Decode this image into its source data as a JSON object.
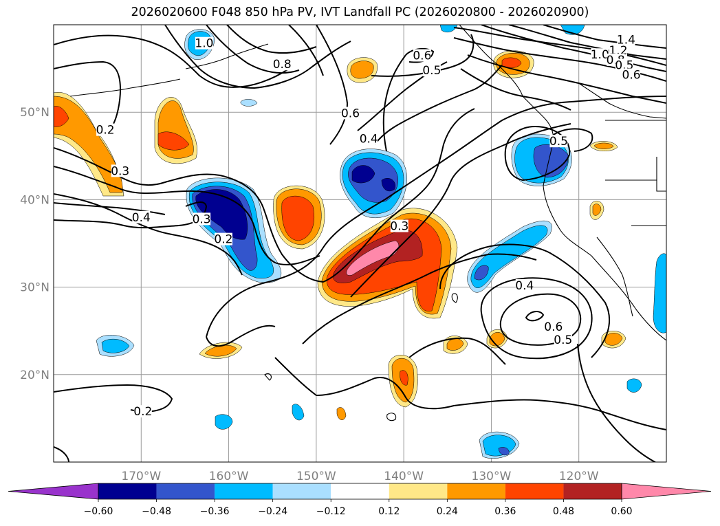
{
  "chart_data": {
    "type": "contour map",
    "title": "2026020600 F048 850 hPa PV, IVT Landfall PC (2026020800 - 2026020900)",
    "map_extent": {
      "lon_range": [
        -180,
        -110
      ],
      "lat_range": [
        10,
        60
      ]
    },
    "lon_ticks": [
      {
        "lon": -170,
        "label": "170°W"
      },
      {
        "lon": -160,
        "label": "160°W"
      },
      {
        "lon": -150,
        "label": "150°W"
      },
      {
        "lon": -140,
        "label": "140°W"
      },
      {
        "lon": -130,
        "label": "130°W"
      },
      {
        "lon": -120,
        "label": "120°W"
      }
    ],
    "lat_ticks": [
      {
        "lat": 20,
        "label": "20°N"
      },
      {
        "lat": 30,
        "label": "30°N"
      },
      {
        "lat": 40,
        "label": "40°N"
      },
      {
        "lat": 50,
        "label": "50°N"
      }
    ],
    "colorbar": {
      "levels": [
        -0.6,
        -0.48,
        -0.36,
        -0.24,
        -0.12,
        0.12,
        0.24,
        0.36,
        0.48,
        0.6
      ],
      "tick_labels": [
        "−0.60",
        "−0.48",
        "−0.36",
        "−0.24",
        "−0.12",
        "0.12",
        "0.24",
        "0.36",
        "0.48",
        "0.60"
      ],
      "colors": [
        "#9933cc",
        "#000090",
        "#3355cc",
        "#00bbff",
        "#aadfff",
        "#ffffff",
        "#ffe888",
        "#ff9900",
        "#ff4400",
        "#b22222",
        "#ff88aa"
      ],
      "extend": "both"
    },
    "pv_contour_labels": [
      {
        "text": "1.0",
        "lon": -162.8,
        "lat": 57.9
      },
      {
        "text": "0.8",
        "lon": -153.9,
        "lat": 55.5
      },
      {
        "text": "0.6",
        "lon": -137.9,
        "lat": 56.5
      },
      {
        "text": "0.5",
        "lon": -136.8,
        "lat": 54.8
      },
      {
        "text": "0.6",
        "lon": -146.1,
        "lat": 49.9
      },
      {
        "text": "0.4",
        "lon": -144.0,
        "lat": 47.0
      },
      {
        "text": "1.4",
        "lon": -114.6,
        "lat": 58.3
      },
      {
        "text": "1.2",
        "lon": -115.5,
        "lat": 57.1
      },
      {
        "text": "1.0",
        "lon": -117.6,
        "lat": 56.6
      },
      {
        "text": "0.8",
        "lon": -115.8,
        "lat": 56.0
      },
      {
        "text": "0.5",
        "lon": -114.8,
        "lat": 55.4
      },
      {
        "text": "0.6",
        "lon": -114.0,
        "lat": 54.3
      },
      {
        "text": "0.5",
        "lon": -122.3,
        "lat": 46.7
      },
      {
        "text": "0.2",
        "lon": -174.1,
        "lat": 48.0
      },
      {
        "text": "0.3",
        "lon": -172.4,
        "lat": 43.3
      },
      {
        "text": "0.4",
        "lon": -170.0,
        "lat": 38.0
      },
      {
        "text": "0.3",
        "lon": -163.1,
        "lat": 37.8
      },
      {
        "text": "0.2",
        "lon": -160.6,
        "lat": 35.5
      },
      {
        "text": "0.3",
        "lon": -140.5,
        "lat": 37.0
      },
      {
        "text": "0.4",
        "lon": -126.2,
        "lat": 30.2
      },
      {
        "text": "0.6",
        "lon": -122.9,
        "lat": 25.5
      },
      {
        "text": "0.5",
        "lon": -121.8,
        "lat": 24.0
      },
      {
        "text": "0.2",
        "lon": -169.8,
        "lat": 15.8
      }
    ]
  }
}
